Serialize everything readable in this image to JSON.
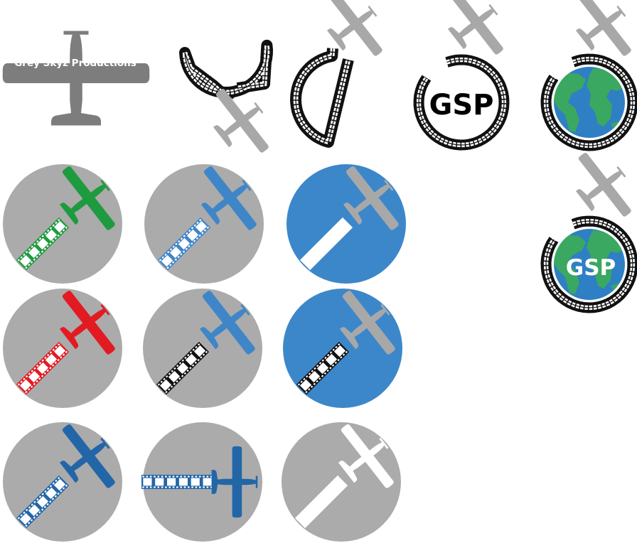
{
  "brand": {
    "wordmark": "Grey Skyz Productions",
    "monogram": "GSP"
  },
  "colors": {
    "plane_grey": "#a8a8a8",
    "dark_grey": "#7d7d7d",
    "circle_grey": "#ababab",
    "circle_blue": "#3c87c9",
    "film_black": "#111111",
    "green": "#1e9a3f",
    "red": "#e21b22",
    "blue": "#3f86c8",
    "navy": "#2266a8",
    "white": "#ffffff",
    "ocean": "#2f7fc4",
    "land": "#3aa860",
    "land_light": "#4bbf72"
  },
  "icons": {
    "main_logo": "airplane-wordmark",
    "loop_logos": [
      {
        "name": "film-loop-plane-bottom-icon",
        "center": "none"
      },
      {
        "name": "film-loop-plane-top-icon",
        "center": "none"
      },
      {
        "name": "film-loop-gsp-icon",
        "center": "monogram"
      },
      {
        "name": "film-loop-globe-icon",
        "center": "globe"
      },
      {
        "name": "film-loop-globe-gsp-icon",
        "center": "globe-monogram"
      }
    ],
    "badges": [
      {
        "name": "badge-green-plane",
        "bg": "circle_grey",
        "plane": "green",
        "film": "green"
      },
      {
        "name": "badge-blue-plane",
        "bg": "circle_grey",
        "plane": "blue",
        "film": "blue"
      },
      {
        "name": "badge-blue-bg-grey-plane",
        "bg": "circle_blue",
        "plane": "plane_grey",
        "film": "white"
      },
      {
        "name": "badge-red-plane",
        "bg": "circle_grey",
        "plane": "red",
        "film": "red"
      },
      {
        "name": "badge-blue-plane-black-film",
        "bg": "circle_grey",
        "plane": "blue",
        "film": "film_black"
      },
      {
        "name": "badge-blue-bg-black-film",
        "bg": "circle_blue",
        "plane": "plane_grey",
        "film": "film_black"
      },
      {
        "name": "badge-navy-plane",
        "bg": "circle_grey",
        "plane": "navy",
        "film": "navy"
      },
      {
        "name": "badge-navy-plane-horizontal",
        "bg": "circle_grey",
        "plane": "navy",
        "film": "navy"
      },
      {
        "name": "badge-white-plane",
        "bg": "circle_grey",
        "plane": "white",
        "film": "white"
      }
    ]
  }
}
